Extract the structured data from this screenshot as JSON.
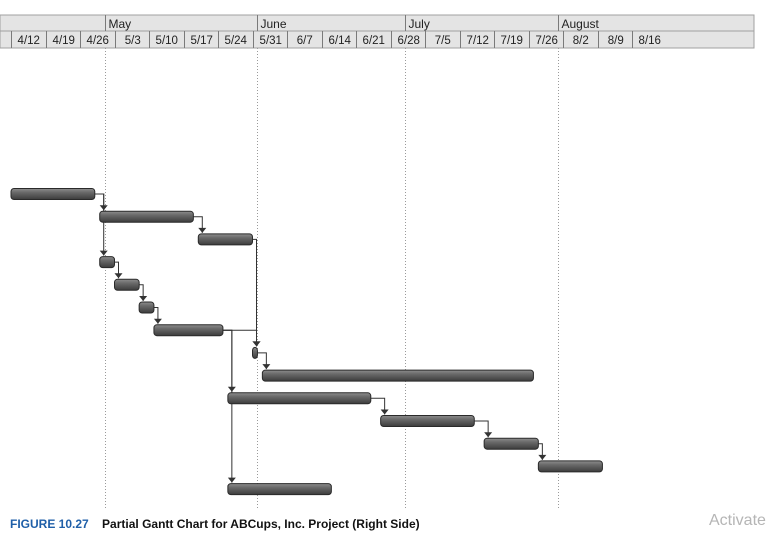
{
  "chart_data": {
    "type": "gantt",
    "months": [
      {
        "label": "May",
        "start": "2015-05-01"
      },
      {
        "label": "June",
        "start": "2015-06-01"
      },
      {
        "label": "July",
        "start": "2015-07-01"
      },
      {
        "label": "August",
        "start": "2015-08-01"
      }
    ],
    "weeks": [
      "4/12",
      "4/19",
      "4/26",
      "5/3",
      "5/10",
      "5/17",
      "5/24",
      "5/31",
      "6/7",
      "6/14",
      "6/21",
      "6/28",
      "7/5",
      "7/12",
      "7/19",
      "7/26",
      "8/2",
      "8/9",
      "8/16"
    ],
    "week_dates": [
      "2015-04-12",
      "2015-04-19",
      "2015-04-26",
      "2015-05-03",
      "2015-05-10",
      "2015-05-17",
      "2015-05-24",
      "2015-05-31",
      "2015-06-07",
      "2015-06-14",
      "2015-06-21",
      "2015-06-28",
      "2015-07-05",
      "2015-07-12",
      "2015-07-19",
      "2015-07-26",
      "2015-08-02",
      "2015-08-09",
      "2015-08-16"
    ],
    "tasks": [
      {
        "id": 1,
        "start": "2015-04-01",
        "end": "2015-04-29"
      },
      {
        "id": 2,
        "start": "2015-04-30",
        "end": "2015-05-19"
      },
      {
        "id": 3,
        "start": "2015-05-20",
        "end": "2015-05-31"
      },
      {
        "id": 4,
        "start": "2015-04-30",
        "end": "2015-05-03"
      },
      {
        "id": 5,
        "start": "2015-05-03",
        "end": "2015-05-08"
      },
      {
        "id": 6,
        "start": "2015-05-08",
        "end": "2015-05-11"
      },
      {
        "id": 7,
        "start": "2015-05-11",
        "end": "2015-05-25"
      },
      {
        "id": 8,
        "start": "2015-05-31",
        "end": "2015-06-01"
      },
      {
        "id": 9,
        "start": "2015-06-02",
        "end": "2015-07-27"
      },
      {
        "id": 10,
        "start": "2015-05-26",
        "end": "2015-06-24"
      },
      {
        "id": 11,
        "start": "2015-06-26",
        "end": "2015-07-15"
      },
      {
        "id": 12,
        "start": "2015-07-17",
        "end": "2015-07-28"
      },
      {
        "id": 13,
        "start": "2015-07-28",
        "end": "2015-08-10"
      },
      {
        "id": 14,
        "start": "2015-05-26",
        "end": "2015-06-16"
      }
    ],
    "dependencies": [
      [
        1,
        2
      ],
      [
        1,
        4
      ],
      [
        2,
        3
      ],
      [
        4,
        5
      ],
      [
        5,
        6
      ],
      [
        6,
        7
      ],
      [
        7,
        10
      ],
      [
        7,
        14
      ],
      [
        3,
        8
      ],
      [
        7,
        8
      ],
      [
        8,
        9
      ],
      [
        10,
        11
      ],
      [
        11,
        12
      ],
      [
        12,
        13
      ]
    ]
  },
  "caption": {
    "figure_label": "FIGURE 10.27",
    "text": "Partial Gantt Chart for ABCups, Inc. Project (Right Side)"
  },
  "watermark": "Activate"
}
